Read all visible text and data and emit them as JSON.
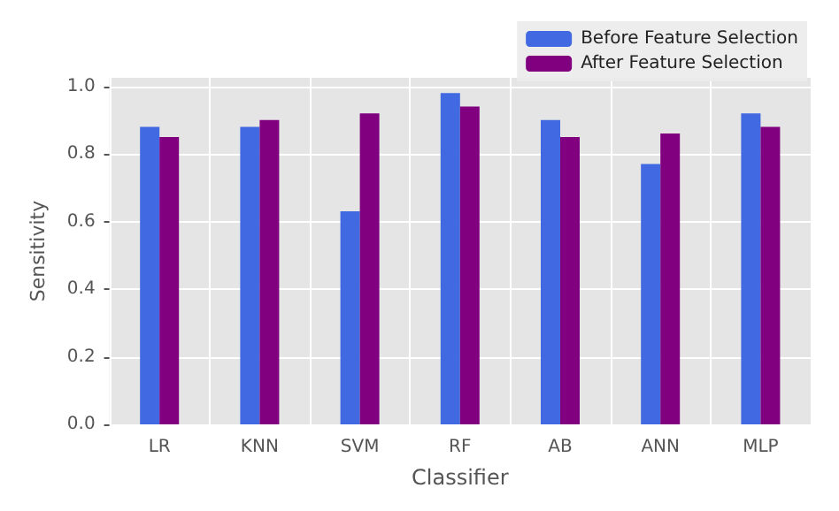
{
  "chart_data": {
    "type": "bar",
    "xlabel": "Classifier",
    "ylabel": "Sensitivity",
    "categories": [
      "LR",
      "KNN",
      "SVM",
      "RF",
      "AB",
      "ANN",
      "MLP"
    ],
    "series": [
      {
        "name": "Before Feature Selection",
        "color": "#4169e1",
        "values": [
          0.88,
          0.88,
          0.63,
          0.98,
          0.9,
          0.77,
          0.92
        ]
      },
      {
        "name": "After Feature Selection",
        "color": "#800080",
        "values": [
          0.85,
          0.9,
          0.92,
          0.94,
          0.85,
          0.86,
          0.88
        ]
      }
    ],
    "ylim": [
      0,
      1.025
    ],
    "yticks": [
      {
        "value": 0,
        "label": "0.0"
      },
      0.2,
      0.4,
      0.6,
      0.8,
      {
        "value": 1,
        "label": "1.0"
      }
    ],
    "grid": true,
    "legend": "top right"
  }
}
